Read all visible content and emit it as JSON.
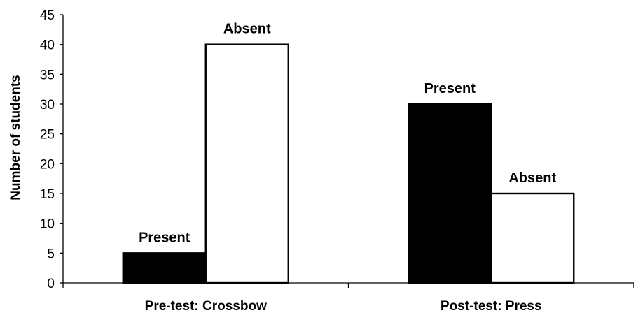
{
  "chart_data": {
    "type": "bar",
    "categories": [
      "Pre-test: Crossbow",
      "Post-test: Press"
    ],
    "series": [
      {
        "values": [
          5,
          30
        ],
        "color": "#000000",
        "labels": [
          "Present",
          "Present"
        ]
      },
      {
        "values": [
          40,
          15
        ],
        "color": "#ffffff",
        "labels": [
          "Absent",
          "Absent"
        ]
      }
    ],
    "ylabel": "Number of students",
    "xlabel": "",
    "ylim": [
      0,
      45
    ],
    "yticks": [
      "0",
      "5",
      "10",
      "15",
      "20",
      "25",
      "30",
      "35",
      "40",
      "45"
    ],
    "grid": false,
    "legend": "none"
  }
}
